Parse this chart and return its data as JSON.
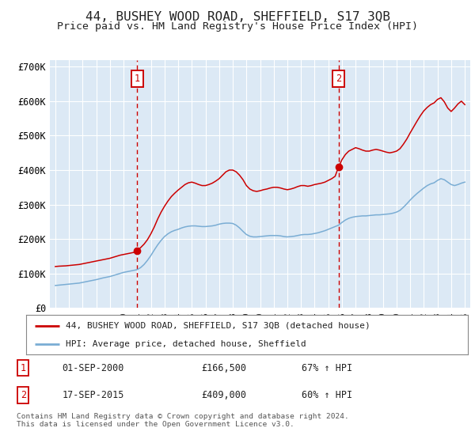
{
  "title": "44, BUSHEY WOOD ROAD, SHEFFIELD, S17 3QB",
  "subtitle": "Price paid vs. HM Land Registry's House Price Index (HPI)",
  "background_color": "#ffffff",
  "plot_bg_color": "#dce9f5",
  "grid_color": "#ffffff",
  "ylim": [
    0,
    720000
  ],
  "yticks": [
    0,
    100000,
    200000,
    300000,
    400000,
    500000,
    600000,
    700000
  ],
  "ytick_labels": [
    "£0",
    "£100K",
    "£200K",
    "£300K",
    "£400K",
    "£500K",
    "£600K",
    "£700K"
  ],
  "sale1_x": 2001.0,
  "sale1_price": 166500,
  "sale2_x": 2015.75,
  "sale2_price": 409000,
  "red_line_color": "#cc0000",
  "blue_line_color": "#7aadd4",
  "annotation_box_color": "#cc0000",
  "legend_label_red": "44, BUSHEY WOOD ROAD, SHEFFIELD, S17 3QB (detached house)",
  "legend_label_blue": "HPI: Average price, detached house, Sheffield",
  "footer": "Contains HM Land Registry data © Crown copyright and database right 2024.\nThis data is licensed under the Open Government Licence v3.0.",
  "red_hpi_data": [
    [
      1995.0,
      120000
    ],
    [
      1995.25,
      121000
    ],
    [
      1995.5,
      121500
    ],
    [
      1995.75,
      122000
    ],
    [
      1996.0,
      123000
    ],
    [
      1996.25,
      124000
    ],
    [
      1996.5,
      125000
    ],
    [
      1996.75,
      126000
    ],
    [
      1997.0,
      128000
    ],
    [
      1997.25,
      130000
    ],
    [
      1997.5,
      132000
    ],
    [
      1997.75,
      134000
    ],
    [
      1998.0,
      136000
    ],
    [
      1998.25,
      138000
    ],
    [
      1998.5,
      140000
    ],
    [
      1998.75,
      142000
    ],
    [
      1999.0,
      144000
    ],
    [
      1999.25,
      147000
    ],
    [
      1999.5,
      150000
    ],
    [
      1999.75,
      153000
    ],
    [
      2000.0,
      155000
    ],
    [
      2000.25,
      157000
    ],
    [
      2000.5,
      159000
    ],
    [
      2000.75,
      161000
    ],
    [
      2001.0,
      166500
    ],
    [
      2001.25,
      175000
    ],
    [
      2001.5,
      185000
    ],
    [
      2001.75,
      198000
    ],
    [
      2002.0,
      215000
    ],
    [
      2002.25,
      235000
    ],
    [
      2002.5,
      258000
    ],
    [
      2002.75,
      278000
    ],
    [
      2003.0,
      295000
    ],
    [
      2003.25,
      310000
    ],
    [
      2003.5,
      323000
    ],
    [
      2003.75,
      333000
    ],
    [
      2004.0,
      342000
    ],
    [
      2004.25,
      350000
    ],
    [
      2004.5,
      358000
    ],
    [
      2004.75,
      363000
    ],
    [
      2005.0,
      365000
    ],
    [
      2005.25,
      362000
    ],
    [
      2005.5,
      358000
    ],
    [
      2005.75,
      355000
    ],
    [
      2006.0,
      355000
    ],
    [
      2006.25,
      358000
    ],
    [
      2006.5,
      362000
    ],
    [
      2006.75,
      368000
    ],
    [
      2007.0,
      375000
    ],
    [
      2007.25,
      385000
    ],
    [
      2007.5,
      395000
    ],
    [
      2007.75,
      400000
    ],
    [
      2008.0,
      400000
    ],
    [
      2008.25,
      395000
    ],
    [
      2008.5,
      385000
    ],
    [
      2008.75,
      372000
    ],
    [
      2009.0,
      355000
    ],
    [
      2009.25,
      345000
    ],
    [
      2009.5,
      340000
    ],
    [
      2009.75,
      338000
    ],
    [
      2010.0,
      340000
    ],
    [
      2010.25,
      343000
    ],
    [
      2010.5,
      345000
    ],
    [
      2010.75,
      348000
    ],
    [
      2011.0,
      350000
    ],
    [
      2011.25,
      350000
    ],
    [
      2011.5,
      348000
    ],
    [
      2011.75,
      345000
    ],
    [
      2012.0,
      343000
    ],
    [
      2012.25,
      345000
    ],
    [
      2012.5,
      348000
    ],
    [
      2012.75,
      352000
    ],
    [
      2013.0,
      355000
    ],
    [
      2013.25,
      355000
    ],
    [
      2013.5,
      353000
    ],
    [
      2013.75,
      355000
    ],
    [
      2014.0,
      358000
    ],
    [
      2014.25,
      360000
    ],
    [
      2014.5,
      362000
    ],
    [
      2014.75,
      365000
    ],
    [
      2015.0,
      370000
    ],
    [
      2015.25,
      375000
    ],
    [
      2015.5,
      382000
    ],
    [
      2015.75,
      409000
    ],
    [
      2016.0,
      430000
    ],
    [
      2016.25,
      445000
    ],
    [
      2016.5,
      455000
    ],
    [
      2016.75,
      460000
    ],
    [
      2017.0,
      465000
    ],
    [
      2017.25,
      462000
    ],
    [
      2017.5,
      458000
    ],
    [
      2017.75,
      455000
    ],
    [
      2018.0,
      455000
    ],
    [
      2018.25,
      458000
    ],
    [
      2018.5,
      460000
    ],
    [
      2018.75,
      458000
    ],
    [
      2019.0,
      455000
    ],
    [
      2019.25,
      452000
    ],
    [
      2019.5,
      450000
    ],
    [
      2019.75,
      452000
    ],
    [
      2020.0,
      455000
    ],
    [
      2020.25,
      462000
    ],
    [
      2020.5,
      475000
    ],
    [
      2020.75,
      490000
    ],
    [
      2021.0,
      508000
    ],
    [
      2021.25,
      525000
    ],
    [
      2021.5,
      542000
    ],
    [
      2021.75,
      558000
    ],
    [
      2022.0,
      572000
    ],
    [
      2022.25,
      582000
    ],
    [
      2022.5,
      590000
    ],
    [
      2022.75,
      595000
    ],
    [
      2023.0,
      605000
    ],
    [
      2023.25,
      610000
    ],
    [
      2023.5,
      598000
    ],
    [
      2023.75,
      580000
    ],
    [
      2024.0,
      570000
    ],
    [
      2024.25,
      580000
    ],
    [
      2024.5,
      592000
    ],
    [
      2024.75,
      600000
    ],
    [
      2025.0,
      590000
    ]
  ],
  "blue_hpi_data": [
    [
      1995.0,
      65000
    ],
    [
      1995.25,
      66000
    ],
    [
      1995.5,
      67000
    ],
    [
      1995.75,
      68000
    ],
    [
      1996.0,
      69000
    ],
    [
      1996.25,
      70000
    ],
    [
      1996.5,
      71000
    ],
    [
      1996.75,
      72000
    ],
    [
      1997.0,
      74000
    ],
    [
      1997.25,
      76000
    ],
    [
      1997.5,
      78000
    ],
    [
      1997.75,
      80000
    ],
    [
      1998.0,
      82000
    ],
    [
      1998.25,
      84500
    ],
    [
      1998.5,
      87000
    ],
    [
      1998.75,
      89000
    ],
    [
      1999.0,
      91000
    ],
    [
      1999.25,
      94000
    ],
    [
      1999.5,
      97000
    ],
    [
      1999.75,
      100000
    ],
    [
      2000.0,
      103000
    ],
    [
      2000.25,
      105000
    ],
    [
      2000.5,
      107000
    ],
    [
      2000.75,
      109000
    ],
    [
      2001.0,
      111000
    ],
    [
      2001.25,
      117000
    ],
    [
      2001.5,
      126000
    ],
    [
      2001.75,
      138000
    ],
    [
      2002.0,
      152000
    ],
    [
      2002.25,
      168000
    ],
    [
      2002.5,
      183000
    ],
    [
      2002.75,
      196000
    ],
    [
      2003.0,
      207000
    ],
    [
      2003.25,
      215000
    ],
    [
      2003.5,
      221000
    ],
    [
      2003.75,
      225000
    ],
    [
      2004.0,
      228000
    ],
    [
      2004.25,
      232000
    ],
    [
      2004.5,
      235000
    ],
    [
      2004.75,
      237000
    ],
    [
      2005.0,
      238000
    ],
    [
      2005.25,
      238000
    ],
    [
      2005.5,
      237000
    ],
    [
      2005.75,
      236000
    ],
    [
      2006.0,
      236000
    ],
    [
      2006.25,
      237000
    ],
    [
      2006.5,
      238000
    ],
    [
      2006.75,
      240000
    ],
    [
      2007.0,
      243000
    ],
    [
      2007.25,
      245000
    ],
    [
      2007.5,
      246000
    ],
    [
      2007.75,
      246000
    ],
    [
      2008.0,
      245000
    ],
    [
      2008.25,
      240000
    ],
    [
      2008.5,
      232000
    ],
    [
      2008.75,
      222000
    ],
    [
      2009.0,
      213000
    ],
    [
      2009.25,
      208000
    ],
    [
      2009.5,
      206000
    ],
    [
      2009.75,
      206000
    ],
    [
      2010.0,
      207000
    ],
    [
      2010.25,
      208000
    ],
    [
      2010.5,
      209000
    ],
    [
      2010.75,
      210000
    ],
    [
      2011.0,
      210000
    ],
    [
      2011.25,
      210000
    ],
    [
      2011.5,
      209000
    ],
    [
      2011.75,
      207000
    ],
    [
      2012.0,
      206000
    ],
    [
      2012.25,
      207000
    ],
    [
      2012.5,
      208000
    ],
    [
      2012.75,
      210000
    ],
    [
      2013.0,
      212000
    ],
    [
      2013.25,
      213000
    ],
    [
      2013.5,
      213000
    ],
    [
      2013.75,
      214000
    ],
    [
      2014.0,
      216000
    ],
    [
      2014.25,
      218000
    ],
    [
      2014.5,
      221000
    ],
    [
      2014.75,
      224000
    ],
    [
      2015.0,
      228000
    ],
    [
      2015.25,
      232000
    ],
    [
      2015.5,
      236000
    ],
    [
      2015.75,
      240000
    ],
    [
      2016.0,
      248000
    ],
    [
      2016.25,
      255000
    ],
    [
      2016.5,
      260000
    ],
    [
      2016.75,
      263000
    ],
    [
      2017.0,
      265000
    ],
    [
      2017.25,
      266000
    ],
    [
      2017.5,
      267000
    ],
    [
      2017.75,
      267000
    ],
    [
      2018.0,
      268000
    ],
    [
      2018.25,
      269000
    ],
    [
      2018.5,
      270000
    ],
    [
      2018.75,
      270000
    ],
    [
      2019.0,
      271000
    ],
    [
      2019.25,
      272000
    ],
    [
      2019.5,
      273000
    ],
    [
      2019.75,
      275000
    ],
    [
      2020.0,
      278000
    ],
    [
      2020.25,
      283000
    ],
    [
      2020.5,
      292000
    ],
    [
      2020.75,
      302000
    ],
    [
      2021.0,
      313000
    ],
    [
      2021.25,
      323000
    ],
    [
      2021.5,
      332000
    ],
    [
      2021.75,
      340000
    ],
    [
      2022.0,
      348000
    ],
    [
      2022.25,
      355000
    ],
    [
      2022.5,
      360000
    ],
    [
      2022.75,
      363000
    ],
    [
      2023.0,
      370000
    ],
    [
      2023.25,
      375000
    ],
    [
      2023.5,
      372000
    ],
    [
      2023.75,
      365000
    ],
    [
      2024.0,
      358000
    ],
    [
      2024.25,
      355000
    ],
    [
      2024.5,
      358000
    ],
    [
      2024.75,
      362000
    ],
    [
      2025.0,
      365000
    ]
  ]
}
